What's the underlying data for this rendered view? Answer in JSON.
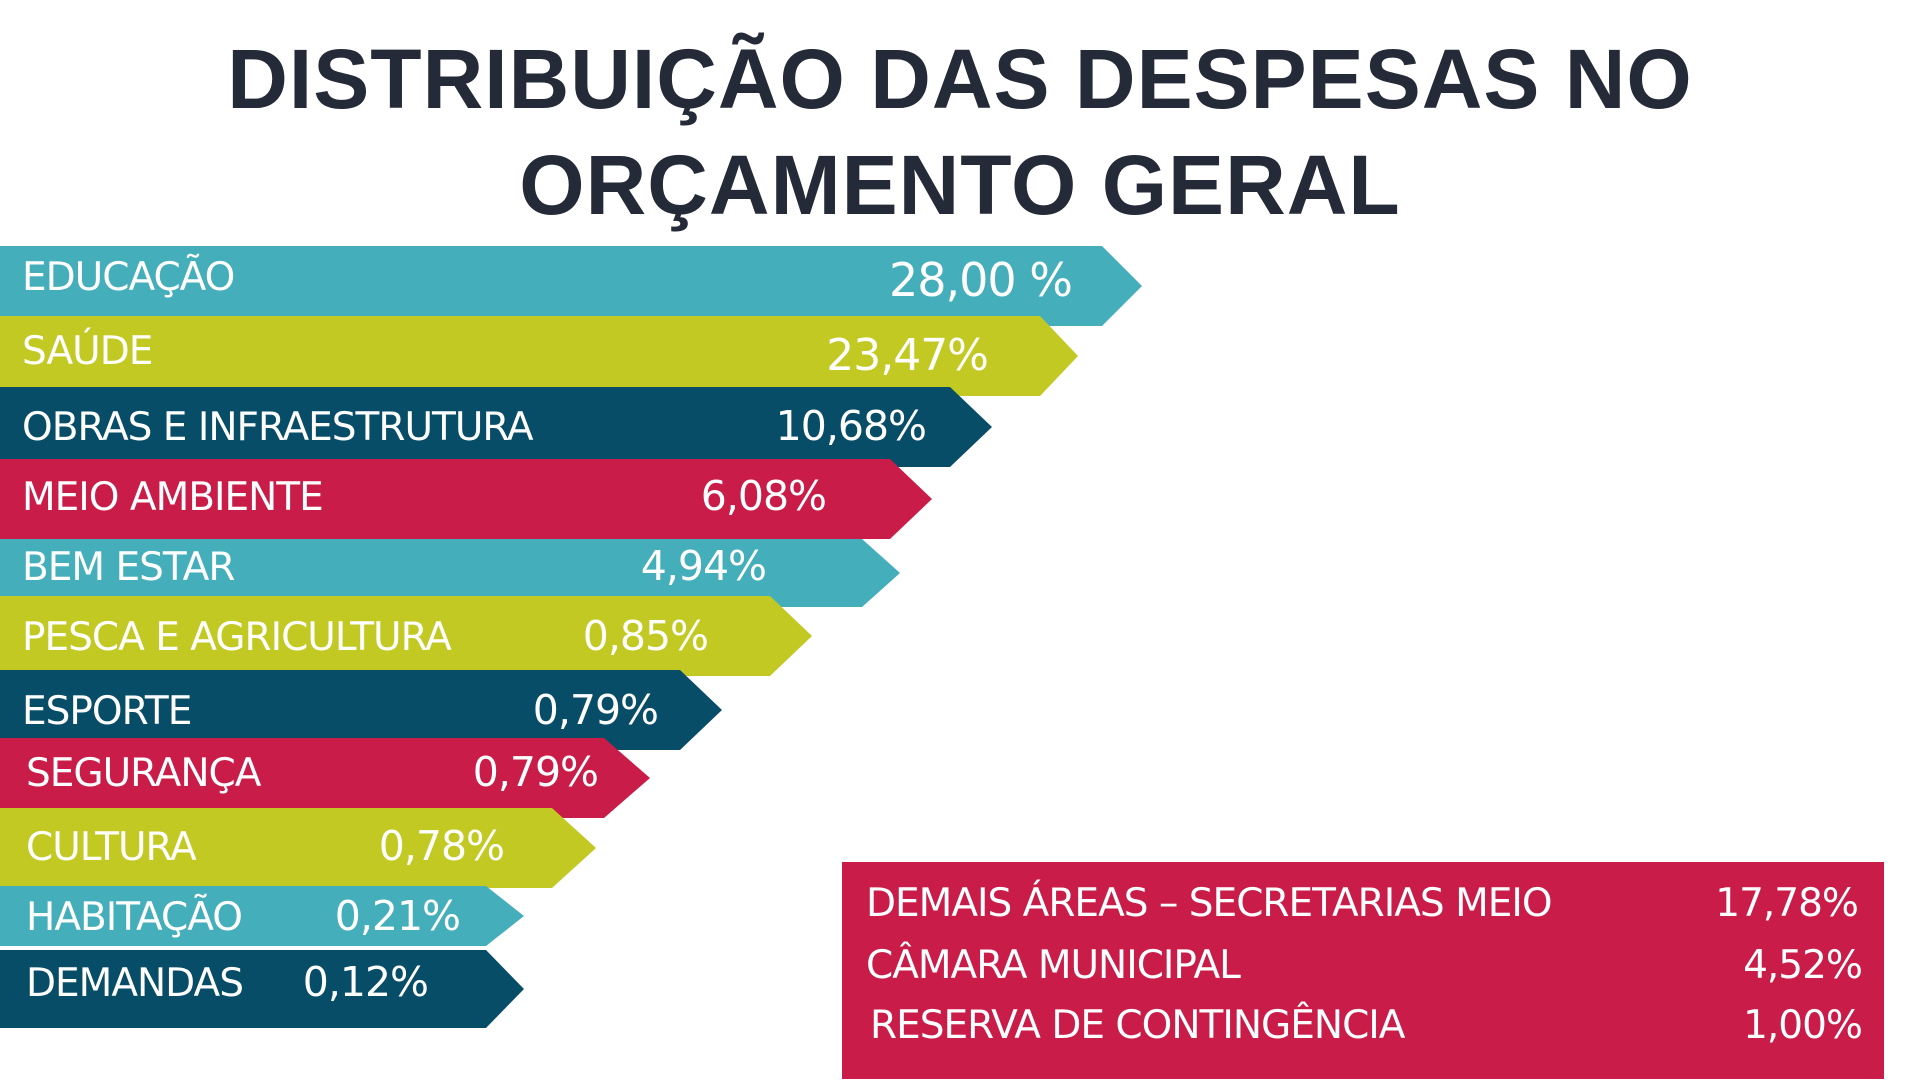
{
  "title": {
    "line1": "DISTRIBUIÇÃO DAS DESPESAS NO",
    "line2": "ORÇAMENTO GERAL"
  },
  "chart_data": {
    "type": "bar",
    "title": "DISTRIBUIÇÃO DAS DESPESAS NO ORÇAMENTO GERAL",
    "xlabel": "",
    "ylabel": "",
    "unit": "%",
    "grid": false,
    "categories": [
      "EDUCAÇÃO",
      "SAÚDE",
      "OBRAS E INFRAESTRUTURA",
      "MEIO AMBIENTE",
      "BEM ESTAR",
      "PESCA E AGRICULTURA",
      "ESPORTE",
      "SEGURANÇA",
      "CULTURA",
      "HABITAÇÃO",
      "DEMANDAS"
    ],
    "values": [
      28.0,
      23.47,
      10.68,
      6.08,
      4.94,
      0.85,
      0.79,
      0.79,
      0.78,
      0.21,
      0.12
    ],
    "value_labels": [
      "28,00 %",
      "23,47%",
      "10,68%",
      "6,08%",
      "4,94%",
      "0,85%",
      "0,79%",
      "0,79%",
      "0,78%",
      "0,21%",
      "0,12%"
    ],
    "colors": [
      "#45aebb",
      "#c2c923",
      "#084d67",
      "#c91c48",
      "#45aebb",
      "#c2c923",
      "#084d67",
      "#c91c48",
      "#c2c923",
      "#45aebb",
      "#084d67"
    ],
    "other_areas": [
      {
        "label": "DEMAIS ÁREAS – SECRETARIAS MEIO",
        "value": 17.78,
        "value_label": "17,78%"
      },
      {
        "label": "CÂMARA MUNICIPAL",
        "value": 4.52,
        "value_label": "4,52%"
      },
      {
        "label": "RESERVA DE CONTINGÊNCIA",
        "value": 1.0,
        "value_label": "1,00%"
      }
    ],
    "other_areas_color": "#c91c48"
  }
}
